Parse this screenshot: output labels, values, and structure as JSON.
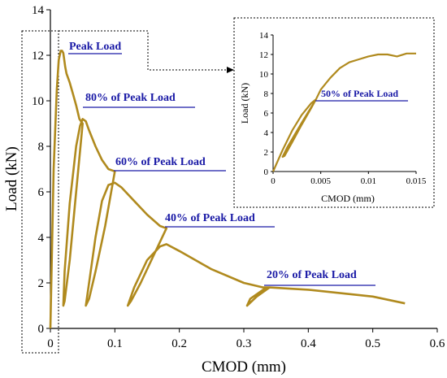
{
  "chart_data": [
    {
      "type": "line",
      "title": "",
      "xlabel": "CMOD (mm)",
      "ylabel": "Load (kN)",
      "xlim": [
        0,
        0.6
      ],
      "ylim": [
        0,
        14
      ],
      "x_ticks": [
        "0",
        "0.1",
        "0.2",
        "0.3",
        "0.4",
        "0.5",
        "0.6"
      ],
      "y_ticks": [
        "0",
        "2",
        "4",
        "6",
        "8",
        "10",
        "12",
        "14"
      ],
      "grid": false,
      "line_color": "#b08a1e",
      "annotation_color": "#1a1aa6",
      "series": [
        {
          "x": [
            0,
            0.005,
            0.01,
            0.013,
            0.016,
            0.018,
            0.02,
            0.023,
            0.025,
            0.03,
            0.035,
            0.04,
            0.045,
            0.05,
            0.04,
            0.03,
            0.022,
            0.02,
            0.022,
            0.03,
            0.04,
            0.046,
            0.05,
            0.055,
            0.06,
            0.07,
            0.08,
            0.09,
            0.1,
            0.085,
            0.07,
            0.06,
            0.055,
            0.06,
            0.07,
            0.08,
            0.09,
            0.1,
            0.11,
            0.13,
            0.15,
            0.17,
            0.18,
            0.16,
            0.14,
            0.125,
            0.12,
            0.13,
            0.15,
            0.17,
            0.18,
            0.2,
            0.25,
            0.3,
            0.33,
            0.34,
            0.32,
            0.305,
            0.31,
            0.33,
            0.34,
            0.4,
            0.5,
            0.55
          ],
          "y": [
            0,
            7,
            10.5,
            11.8,
            12.2,
            12.2,
            12.1,
            11.5,
            11.2,
            10.8,
            10.3,
            9.8,
            9.2,
            9.0,
            6.0,
            3.0,
            1.2,
            1.0,
            2.5,
            5.5,
            8.0,
            8.9,
            9.2,
            9.1,
            8.7,
            8.0,
            7.4,
            7.0,
            6.9,
            4.5,
            2.5,
            1.3,
            1.0,
            2.0,
            4.0,
            5.6,
            6.3,
            6.4,
            6.2,
            5.6,
            5.0,
            4.5,
            4.4,
            3.2,
            2.0,
            1.2,
            1.0,
            1.8,
            3.0,
            3.6,
            3.7,
            3.4,
            2.6,
            2.0,
            1.8,
            1.8,
            1.4,
            1.0,
            1.3,
            1.7,
            1.8,
            1.7,
            1.4,
            1.1
          ]
        }
      ],
      "annotations": [
        "Peak Load",
        "80% of Peak Load",
        "60% of Peak Load",
        "40% of Peak Load",
        "20% of Peak Load"
      ]
    },
    {
      "type": "line",
      "title": "",
      "xlabel": "CMOD (mm)",
      "ylabel": "Load (kN)",
      "xlim": [
        0,
        0.015
      ],
      "ylim": [
        0,
        14
      ],
      "x_ticks": [
        "0",
        "0.005",
        "0.01",
        "0.015"
      ],
      "y_ticks": [
        "0",
        "2",
        "4",
        "6",
        "8",
        "10",
        "12",
        "14"
      ],
      "grid": false,
      "series": [
        {
          "x": [
            0,
            0.001,
            0.002,
            0.003,
            0.004,
            0.0045,
            0.004,
            0.003,
            0.002,
            0.0012,
            0.001,
            0.0015,
            0.003,
            0.0045,
            0.005,
            0.006,
            0.007,
            0.008,
            0.009,
            0.01,
            0.011,
            0.012,
            0.013,
            0.014,
            0.015
          ],
          "y": [
            0,
            2.2,
            4.2,
            5.8,
            7.0,
            7.4,
            6.5,
            4.8,
            3.0,
            1.6,
            1.5,
            2.5,
            5.0,
            7.4,
            8.4,
            9.6,
            10.6,
            11.2,
            11.5,
            11.8,
            12.0,
            12.0,
            11.8,
            12.1,
            12.1
          ]
        }
      ],
      "annotations": [
        "50% of Peak Load"
      ]
    }
  ]
}
